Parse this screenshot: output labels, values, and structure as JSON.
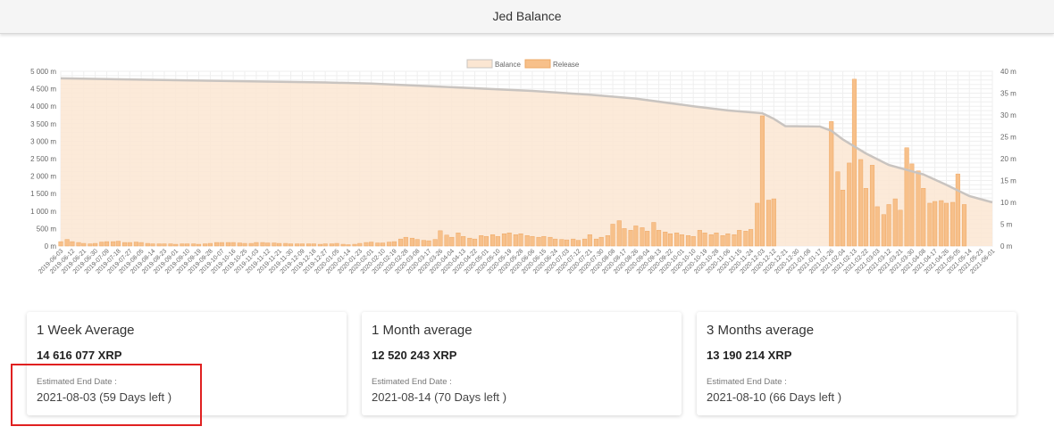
{
  "header": {
    "title": "Jed Balance"
  },
  "colors": {
    "balance_fill": "#fbe6d2",
    "balance_line": "#c9c4c0",
    "release_bar": "#f7c08a",
    "release_bar_edge": "#eea865",
    "highlight": "#e02020"
  },
  "chart_data": {
    "type": "bar",
    "legend_placement": "top-center",
    "grid": true,
    "series": [
      {
        "name": "Balance",
        "kind": "area",
        "axis": "left"
      },
      {
        "name": "Release",
        "kind": "bar",
        "axis": "right"
      }
    ],
    "y_left": {
      "ylim": [
        0,
        5000
      ],
      "ticks": [
        "0 m",
        "500 m",
        "1 000 m",
        "1 500 m",
        "2 000 m",
        "2 500 m",
        "3 000 m",
        "3 500 m",
        "4 000 m",
        "4 500 m",
        "5 000 m"
      ]
    },
    "y_right": {
      "ylim": [
        0,
        40
      ],
      "ticks": [
        "0 m",
        "5 m",
        "10 m",
        "15 m",
        "20 m",
        "25 m",
        "30 m",
        "35 m",
        "40 m"
      ]
    },
    "x_labels": [
      "2019-06-03",
      "2019-06-12",
      "2019-06-21",
      "2019-06-30",
      "2019-07-09",
      "2019-07-18",
      "2019-07-27",
      "2019-08-05",
      "2019-08-14",
      "2019-08-23",
      "2019-09-01",
      "2019-09-10",
      "2019-09-19",
      "2019-09-28",
      "2019-10-07",
      "2019-10-16",
      "2019-10-25",
      "2019-11-03",
      "2019-11-12",
      "2019-11-21",
      "2019-11-30",
      "2019-12-09",
      "2019-12-18",
      "2019-12-27",
      "2020-01-05",
      "2020-01-14",
      "2020-01-23",
      "2020-02-01",
      "2020-02-10",
      "2020-02-19",
      "2020-02-28",
      "2020-03-08",
      "2020-03-17",
      "2020-03-26",
      "2020-04-04",
      "2020-04-13",
      "2020-04-22",
      "2020-05-01",
      "2020-05-10",
      "2020-05-19",
      "2020-05-28",
      "2020-06-06",
      "2020-06-15",
      "2020-06-24",
      "2020-07-03",
      "2020-07-12",
      "2020-07-21",
      "2020-07-30",
      "2020-08-08",
      "2020-08-17",
      "2020-08-26",
      "2020-09-04",
      "2020-09-13",
      "2020-09-22",
      "2020-10-01",
      "2020-10-10",
      "2020-10-19",
      "2020-10-28",
      "2020-11-06",
      "2020-11-15",
      "2020-11-24",
      "2020-12-03",
      "2020-12-12",
      "2020-12-21",
      "2020-12-30",
      "2021-01-08",
      "2021-01-17",
      "2021-01-26",
      "2021-02-04",
      "2021-02-13",
      "2021-02-22",
      "2021-03-03",
      "2021-03-12",
      "2021-03-21",
      "2021-03-30",
      "2021-04-08",
      "2021-04-17",
      "2021-04-26",
      "2021-05-05",
      "2021-05-14",
      "2021-05-23",
      "2021-06-01"
    ],
    "balance_points": [
      [
        "2019-06-03",
        4800
      ],
      [
        "2019-08-05",
        4760
      ],
      [
        "2019-12-27",
        4680
      ],
      [
        "2020-02-01",
        4650
      ],
      [
        "2020-03-26",
        4560
      ],
      [
        "2020-06-06",
        4440
      ],
      [
        "2020-07-21",
        4330
      ],
      [
        "2020-08-26",
        4220
      ],
      [
        "2020-10-10",
        4000
      ],
      [
        "2020-11-06",
        3880
      ],
      [
        "2020-12-03",
        3800
      ],
      [
        "2020-12-12",
        3640
      ],
      [
        "2020-12-21",
        3430
      ],
      [
        "2021-01-17",
        3420
      ],
      [
        "2021-01-26",
        3300
      ],
      [
        "2021-02-04",
        3050
      ],
      [
        "2021-02-22",
        2650
      ],
      [
        "2021-03-12",
        2320
      ],
      [
        "2021-04-08",
        2050
      ],
      [
        "2021-04-26",
        1750
      ],
      [
        "2021-05-14",
        1430
      ],
      [
        "2021-06-01",
        1250
      ]
    ],
    "release_bars": [
      [
        "2019-06-03",
        1.0
      ],
      [
        "2019-06-08",
        1.5
      ],
      [
        "2019-06-12",
        1.0
      ],
      [
        "2019-06-17",
        0.8
      ],
      [
        "2019-06-21",
        0.6
      ],
      [
        "2019-06-26",
        0.5
      ],
      [
        "2019-06-30",
        0.6
      ],
      [
        "2019-07-05",
        0.9
      ],
      [
        "2019-07-09",
        1.0
      ],
      [
        "2019-07-14",
        1.0
      ],
      [
        "2019-07-18",
        1.1
      ],
      [
        "2019-07-23",
        0.8
      ],
      [
        "2019-07-27",
        0.8
      ],
      [
        "2019-08-01",
        0.9
      ],
      [
        "2019-08-05",
        0.8
      ],
      [
        "2019-08-10",
        0.6
      ],
      [
        "2019-08-14",
        0.5
      ],
      [
        "2019-08-19",
        0.5
      ],
      [
        "2019-08-23",
        0.5
      ],
      [
        "2019-08-28",
        0.5
      ],
      [
        "2019-09-01",
        0.4
      ],
      [
        "2019-09-06",
        0.5
      ],
      [
        "2019-09-10",
        0.5
      ],
      [
        "2019-09-15",
        0.5
      ],
      [
        "2019-09-19",
        0.4
      ],
      [
        "2019-09-24",
        0.5
      ],
      [
        "2019-09-28",
        0.6
      ],
      [
        "2019-10-03",
        0.8
      ],
      [
        "2019-10-07",
        0.8
      ],
      [
        "2019-10-12",
        0.8
      ],
      [
        "2019-10-16",
        0.8
      ],
      [
        "2019-10-21",
        0.7
      ],
      [
        "2019-10-25",
        0.6
      ],
      [
        "2019-10-30",
        0.6
      ],
      [
        "2019-11-03",
        0.8
      ],
      [
        "2019-11-08",
        0.8
      ],
      [
        "2019-11-12",
        0.7
      ],
      [
        "2019-11-17",
        0.7
      ],
      [
        "2019-11-21",
        0.6
      ],
      [
        "2019-11-26",
        0.6
      ],
      [
        "2019-11-30",
        0.5
      ],
      [
        "2019-12-05",
        0.5
      ],
      [
        "2019-12-09",
        0.5
      ],
      [
        "2019-12-14",
        0.5
      ],
      [
        "2019-12-18",
        0.5
      ],
      [
        "2019-12-23",
        0.4
      ],
      [
        "2019-12-27",
        0.5
      ],
      [
        "2020-01-01",
        0.5
      ],
      [
        "2020-01-05",
        0.6
      ],
      [
        "2020-01-10",
        0.4
      ],
      [
        "2020-01-14",
        0.3
      ],
      [
        "2020-01-19",
        0.4
      ],
      [
        "2020-01-23",
        0.6
      ],
      [
        "2020-01-28",
        0.8
      ],
      [
        "2020-02-01",
        0.9
      ],
      [
        "2020-02-06",
        0.7
      ],
      [
        "2020-02-10",
        0.7
      ],
      [
        "2020-02-15",
        0.9
      ],
      [
        "2020-02-19",
        1.0
      ],
      [
        "2020-02-24",
        1.6
      ],
      [
        "2020-02-28",
        2.0
      ],
      [
        "2020-03-04",
        1.8
      ],
      [
        "2020-03-08",
        1.5
      ],
      [
        "2020-03-13",
        1.3
      ],
      [
        "2020-03-17",
        1.2
      ],
      [
        "2020-03-22",
        1.5
      ],
      [
        "2020-03-26",
        3.5
      ],
      [
        "2020-03-31",
        2.5
      ],
      [
        "2020-04-04",
        2.0
      ],
      [
        "2020-04-09",
        3.0
      ],
      [
        "2020-04-13",
        2.2
      ],
      [
        "2020-04-18",
        1.8
      ],
      [
        "2020-04-22",
        1.6
      ],
      [
        "2020-04-27",
        2.4
      ],
      [
        "2020-05-01",
        2.2
      ],
      [
        "2020-05-06",
        2.6
      ],
      [
        "2020-05-10",
        2.2
      ],
      [
        "2020-05-15",
        2.8
      ],
      [
        "2020-05-19",
        3.0
      ],
      [
        "2020-05-24",
        2.6
      ],
      [
        "2020-05-28",
        2.8
      ],
      [
        "2020-06-02",
        2.4
      ],
      [
        "2020-06-06",
        2.2
      ],
      [
        "2020-06-11",
        2.0
      ],
      [
        "2020-06-15",
        2.2
      ],
      [
        "2020-06-20",
        2.0
      ],
      [
        "2020-06-24",
        1.6
      ],
      [
        "2020-06-29",
        1.5
      ],
      [
        "2020-07-03",
        1.4
      ],
      [
        "2020-07-08",
        1.6
      ],
      [
        "2020-07-12",
        1.3
      ],
      [
        "2020-07-17",
        1.6
      ],
      [
        "2020-07-21",
        2.6
      ],
      [
        "2020-07-26",
        1.6
      ],
      [
        "2020-07-30",
        2.0
      ],
      [
        "2020-08-04",
        2.4
      ],
      [
        "2020-08-08",
        5.0
      ],
      [
        "2020-08-13",
        5.8
      ],
      [
        "2020-08-17",
        4.0
      ],
      [
        "2020-08-22",
        3.6
      ],
      [
        "2020-08-26",
        4.6
      ],
      [
        "2020-08-31",
        4.2
      ],
      [
        "2020-09-04",
        3.4
      ],
      [
        "2020-09-09",
        5.4
      ],
      [
        "2020-09-13",
        3.6
      ],
      [
        "2020-09-18",
        3.2
      ],
      [
        "2020-09-22",
        2.8
      ],
      [
        "2020-09-27",
        3.0
      ],
      [
        "2020-10-01",
        2.6
      ],
      [
        "2020-10-06",
        2.4
      ],
      [
        "2020-10-10",
        2.2
      ],
      [
        "2020-10-15",
        3.6
      ],
      [
        "2020-10-19",
        3.0
      ],
      [
        "2020-10-24",
        2.6
      ],
      [
        "2020-10-28",
        3.0
      ],
      [
        "2020-11-02",
        2.4
      ],
      [
        "2020-11-06",
        2.8
      ],
      [
        "2020-11-11",
        2.6
      ],
      [
        "2020-11-15",
        3.6
      ],
      [
        "2020-11-20",
        3.4
      ],
      [
        "2020-11-24",
        3.8
      ],
      [
        "2020-11-29",
        9.8
      ],
      [
        "2020-12-03",
        29.8
      ],
      [
        "2020-12-08",
        10.5
      ],
      [
        "2020-12-12",
        10.8
      ],
      [
        "2021-01-26",
        28.5
      ],
      [
        "2021-01-31",
        17.0
      ],
      [
        "2021-02-04",
        12.8
      ],
      [
        "2021-02-09",
        19.0
      ],
      [
        "2021-02-13",
        38.2
      ],
      [
        "2021-02-18",
        19.8
      ],
      [
        "2021-02-22",
        13.2
      ],
      [
        "2021-02-27",
        18.5
      ],
      [
        "2021-03-03",
        9.0
      ],
      [
        "2021-03-08",
        7.2
      ],
      [
        "2021-03-12",
        9.5
      ],
      [
        "2021-03-17",
        10.8
      ],
      [
        "2021-03-21",
        8.2
      ],
      [
        "2021-03-26",
        22.5
      ],
      [
        "2021-03-30",
        18.8
      ],
      [
        "2021-04-04",
        17.2
      ],
      [
        "2021-04-08",
        13.2
      ],
      [
        "2021-04-13",
        9.8
      ],
      [
        "2021-04-17",
        10.2
      ],
      [
        "2021-04-22",
        10.4
      ],
      [
        "2021-04-26",
        9.8
      ],
      [
        "2021-05-01",
        10.0
      ],
      [
        "2021-05-05",
        16.5
      ],
      [
        "2021-05-10",
        9.5
      ]
    ]
  },
  "cards": [
    {
      "title": "1 Week Average",
      "amount": "14 616 077 XRP",
      "end_label": "Estimated End Date :",
      "end_value": "2021-08-03 (59 Days left )"
    },
    {
      "title": "1 Month average",
      "amount": "12 520 243 XRP",
      "end_label": "Estimated End Date :",
      "end_value": "2021-08-14 (70 Days left )"
    },
    {
      "title": "3 Months average",
      "amount": "13 190 214 XRP",
      "end_label": "Estimated End Date :",
      "end_value": "2021-08-10 (66 Days left )"
    }
  ]
}
